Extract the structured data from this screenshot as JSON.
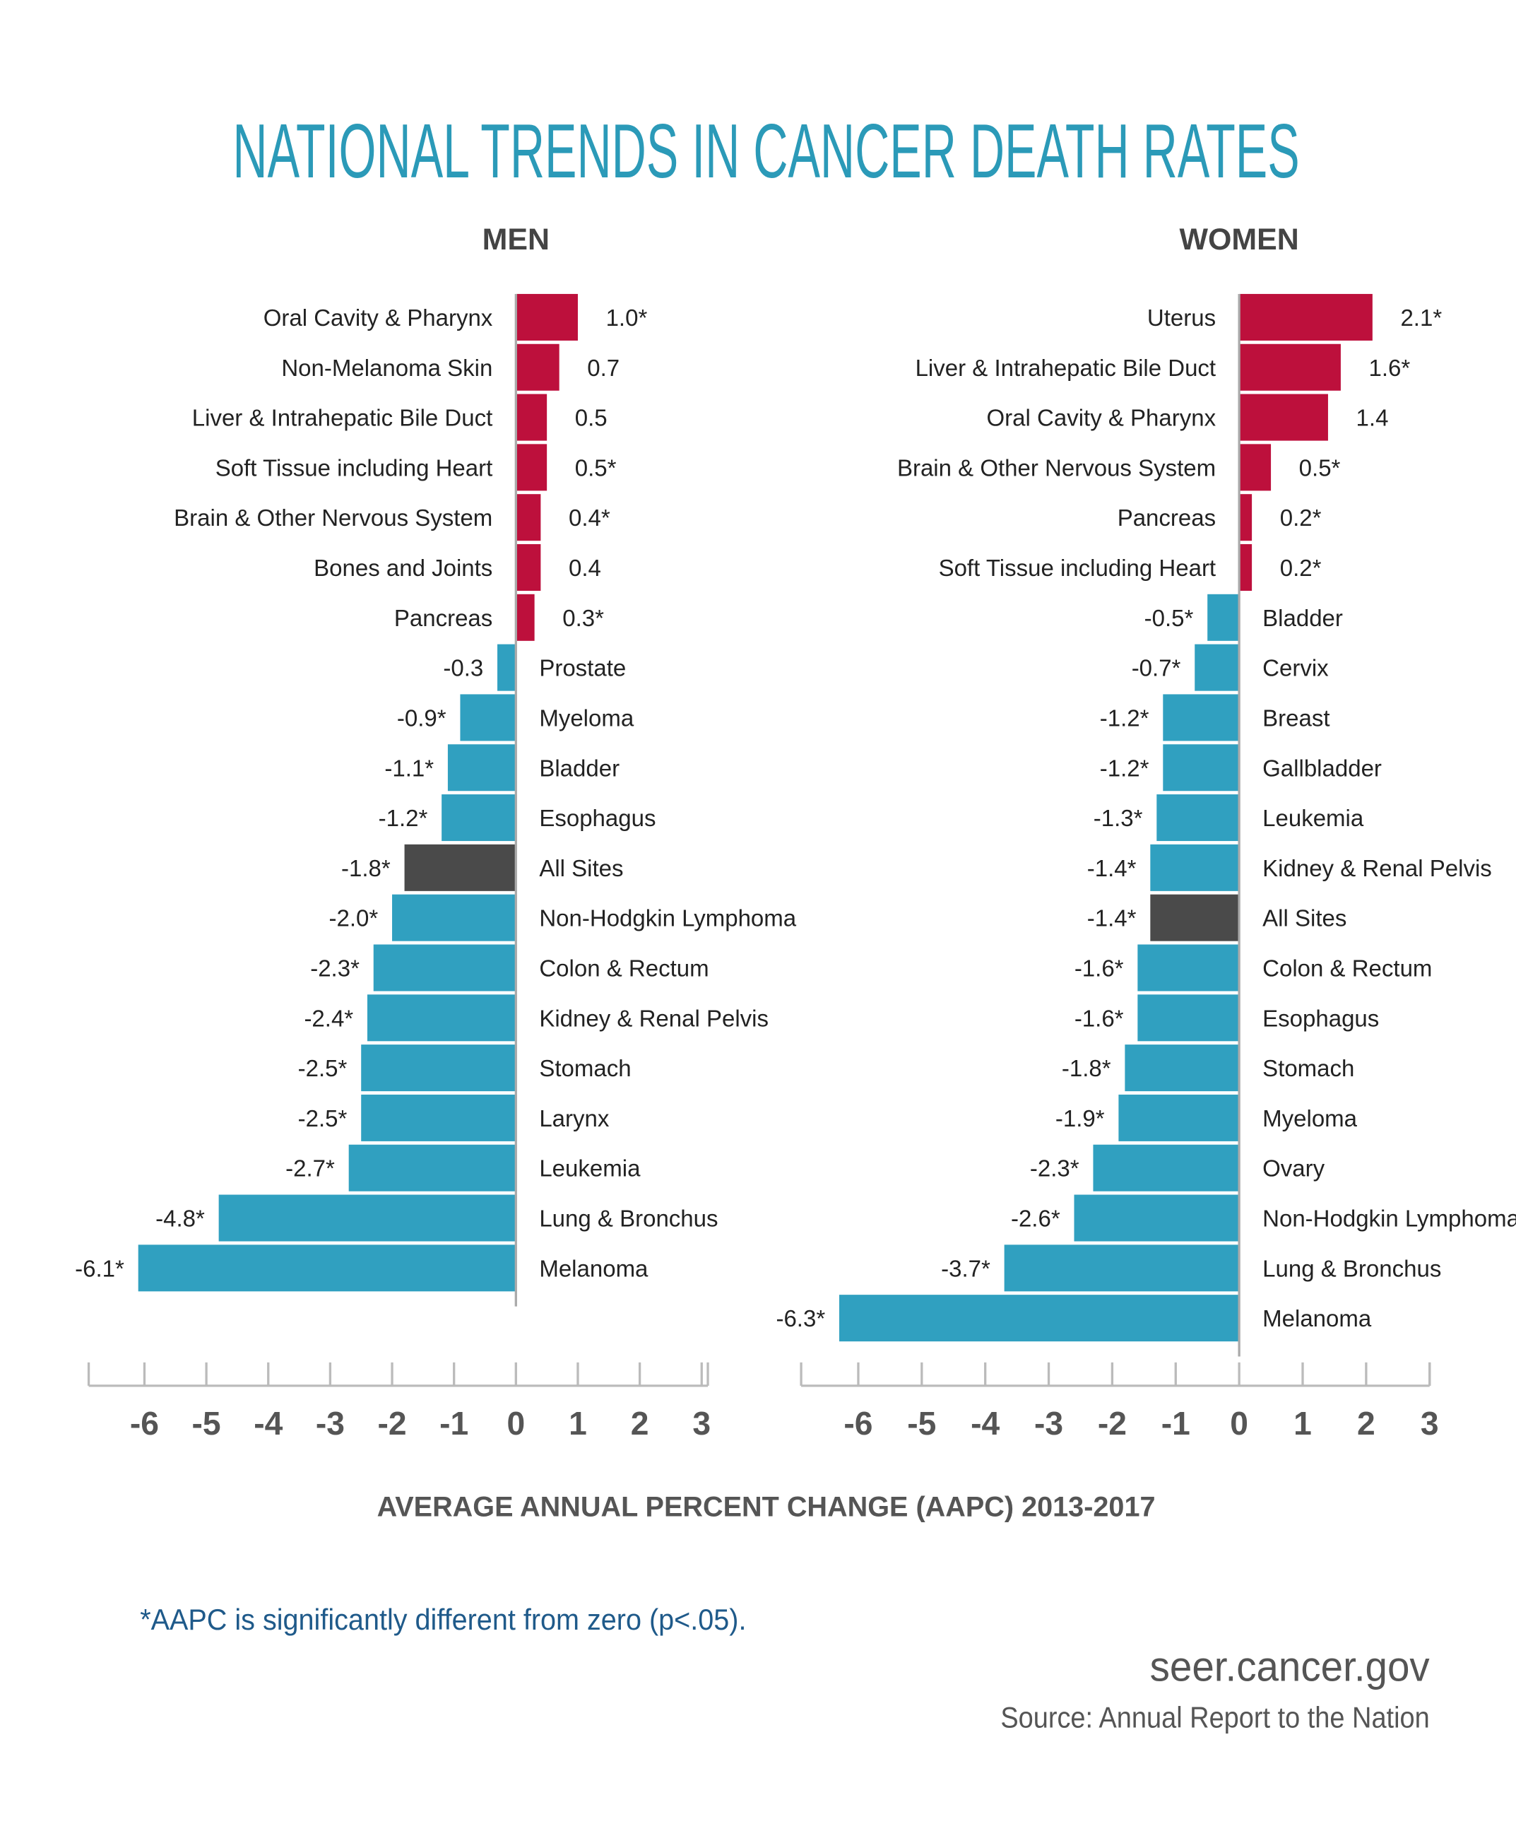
{
  "title": "NATIONAL TRENDS IN CANCER DEATH RATES",
  "x_label": "AVERAGE ANNUAL PERCENT CHANGE (AAPC) 2013-2017",
  "footnote": "*AAPC is significantly different from zero (p<.05).",
  "site": "seer.cancer.gov",
  "source": "Source: Annual Report to the Nation",
  "chart_data": [
    {
      "type": "bar",
      "orientation": "horizontal",
      "title": "MEN",
      "categories": [
        "Oral Cavity & Pharynx",
        "Non-Melanoma Skin",
        "Liver & Intrahepatic Bile Duct",
        "Soft Tissue including Heart",
        "Brain & Other Nervous System",
        "Bones and Joints",
        "Pancreas",
        "Prostate",
        "Myeloma",
        "Bladder",
        "Esophagus",
        "All Sites",
        "Non-Hodgkin Lymphoma",
        "Colon & Rectum",
        "Kidney & Renal Pelvis",
        "Stomach",
        "Larynx",
        "Leukemia",
        "Lung & Bronchus",
        "Melanoma"
      ],
      "values": [
        1.0,
        0.7,
        0.5,
        0.5,
        0.4,
        0.4,
        0.3,
        -0.3,
        -0.9,
        -1.1,
        -1.2,
        -1.8,
        -2.0,
        -2.3,
        -2.4,
        -2.5,
        -2.5,
        -2.7,
        -4.8,
        -6.1
      ],
      "value_labels": [
        "1.0*",
        "0.7",
        "0.5",
        "0.5*",
        "0.4*",
        "0.4",
        "0.3*",
        "-0.3",
        "-0.9*",
        "-1.1*",
        "-1.2*",
        "-1.8*",
        "-2.0*",
        "-2.3*",
        "-2.4*",
        "-2.5*",
        "-2.5*",
        "-2.7*",
        "-4.8*",
        "-6.1*"
      ],
      "colors": [
        "#bd103c",
        "#bd103c",
        "#bd103c",
        "#bd103c",
        "#bd103c",
        "#bd103c",
        "#bd103c",
        "#30a0c0",
        "#30a0c0",
        "#30a0c0",
        "#30a0c0",
        "#4a4a4a",
        "#30a0c0",
        "#30a0c0",
        "#30a0c0",
        "#30a0c0",
        "#30a0c0",
        "#30a0c0",
        "#30a0c0",
        "#30a0c0"
      ],
      "xlim": [
        -6.9,
        3.1
      ],
      "xticks": [
        -6,
        -5,
        -4,
        -3,
        -2,
        -1,
        0,
        1,
        2,
        3
      ]
    },
    {
      "type": "bar",
      "orientation": "horizontal",
      "title": "WOMEN",
      "categories": [
        "Uterus",
        "Liver & Intrahepatic Bile Duct",
        "Oral Cavity & Pharynx",
        "Brain & Other Nervous System",
        "Pancreas",
        "Soft Tissue including Heart",
        "Bladder",
        "Cervix",
        "Breast",
        "Gallbladder",
        "Leukemia",
        "Kidney & Renal Pelvis",
        "All Sites",
        "Colon & Rectum",
        "Esophagus",
        "Stomach",
        "Myeloma",
        "Ovary",
        "Non-Hodgkin Lymphoma",
        "Lung & Bronchus",
        "Melanoma"
      ],
      "values": [
        2.1,
        1.6,
        1.4,
        0.5,
        0.2,
        0.2,
        -0.5,
        -0.7,
        -1.2,
        -1.2,
        -1.3,
        -1.4,
        -1.4,
        -1.6,
        -1.6,
        -1.8,
        -1.9,
        -2.3,
        -2.6,
        -3.7,
        -6.3
      ],
      "value_labels": [
        "2.1*",
        "1.6*",
        "1.4",
        "0.5*",
        "0.2*",
        "0.2*",
        "-0.5*",
        "-0.7*",
        "-1.2*",
        "-1.2*",
        "-1.3*",
        "-1.4*",
        "-1.4*",
        "-1.6*",
        "-1.6*",
        "-1.8*",
        "-1.9*",
        "-2.3*",
        "-2.6*",
        "-3.7*",
        "-6.3*"
      ],
      "colors": [
        "#bd103c",
        "#bd103c",
        "#bd103c",
        "#bd103c",
        "#bd103c",
        "#bd103c",
        "#30a0c0",
        "#30a0c0",
        "#30a0c0",
        "#30a0c0",
        "#30a0c0",
        "#30a0c0",
        "#4a4a4a",
        "#30a0c0",
        "#30a0c0",
        "#30a0c0",
        "#30a0c0",
        "#30a0c0",
        "#30a0c0",
        "#30a0c0",
        "#30a0c0"
      ],
      "xlim": [
        -6.9,
        3.0
      ],
      "xticks": [
        -6,
        -5,
        -4,
        -3,
        -2,
        -1,
        0,
        1,
        2,
        3
      ]
    }
  ]
}
